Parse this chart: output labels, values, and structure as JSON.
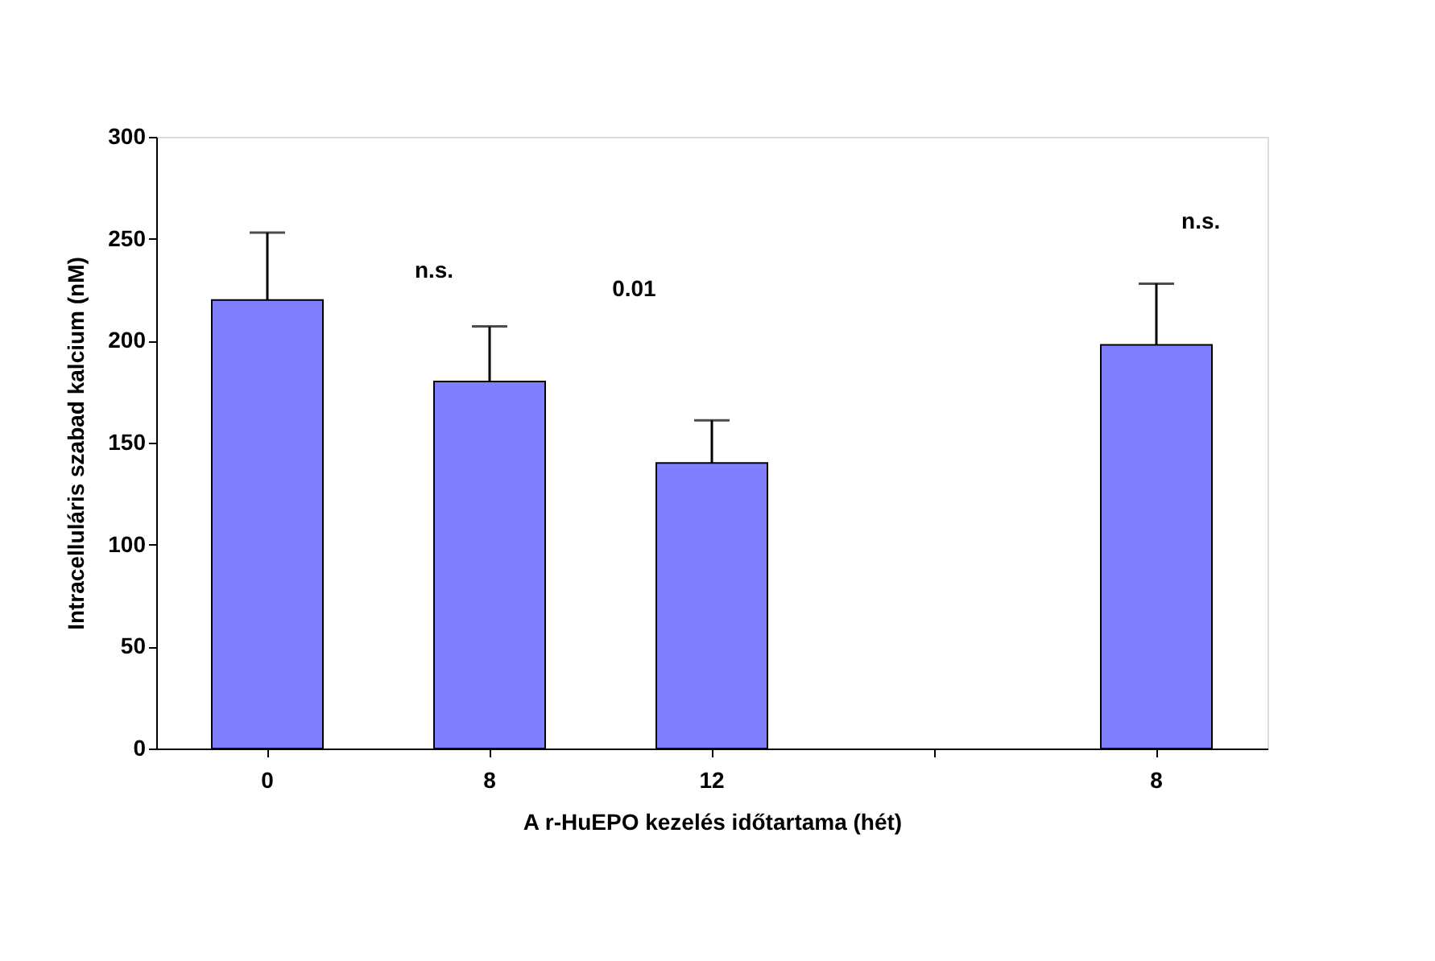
{
  "chart_data": {
    "type": "bar",
    "xlabel": "A r-HuEPO kezelés időtartama (hét)",
    "ylabel": "Intracelluláris szabad kalcium (nM)",
    "categories": [
      "0",
      "8",
      "12",
      null,
      "8"
    ],
    "values": [
      220,
      180,
      140,
      null,
      198
    ],
    "errors": [
      [
        220,
        253
      ],
      [
        180,
        207
      ],
      [
        140,
        161
      ],
      null,
      [
        198,
        228
      ]
    ],
    "color": "#8080ff",
    "ylim": [
      0,
      300
    ],
    "yticks": [
      0,
      50,
      100,
      150,
      200,
      250,
      300
    ],
    "grid": false,
    "annotations": [
      "n.s.",
      "0.01",
      "n.s."
    ]
  }
}
